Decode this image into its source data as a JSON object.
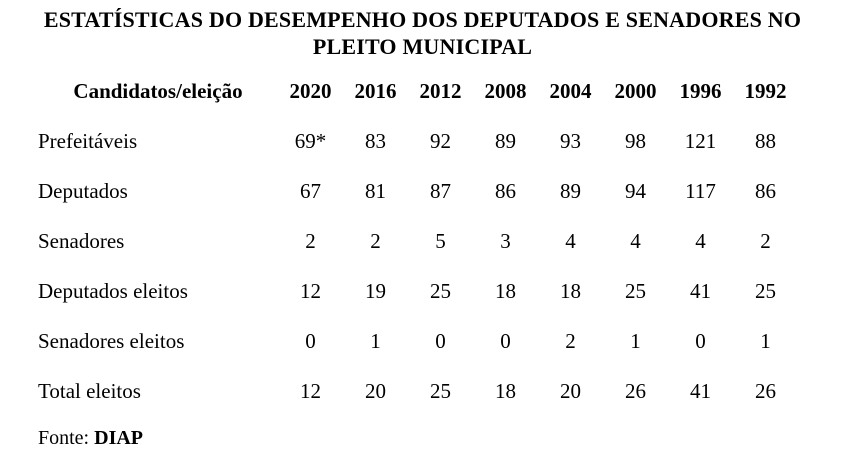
{
  "title": {
    "line1": "ESTATÍSTICAS DO DESEMPENHO DOS DEPUTADOS E SENADORES NO",
    "line2": "PLEITO MUNICIPAL"
  },
  "table": {
    "header": {
      "label_column": "Candidatos/eleição",
      "year_columns": [
        "2020",
        "2016",
        "2012",
        "2008",
        "2004",
        "2000",
        "1996",
        "1992"
      ]
    },
    "rows": [
      {
        "label": "Prefeitáveis",
        "values": [
          "69*",
          "83",
          "92",
          "89",
          "93",
          "98",
          "121",
          "88"
        ]
      },
      {
        "label": "Deputados",
        "values": [
          "67",
          "81",
          "87",
          "86",
          "89",
          "94",
          "117",
          "86"
        ]
      },
      {
        "label": "Senadores",
        "values": [
          "2",
          "2",
          "5",
          "3",
          "4",
          "4",
          "4",
          "2"
        ]
      },
      {
        "label": "Deputados eleitos",
        "values": [
          "12",
          "19",
          "25",
          "18",
          "18",
          "25",
          "41",
          "25"
        ]
      },
      {
        "label": "Senadores eleitos",
        "values": [
          "0",
          "1",
          "0",
          "0",
          "2",
          "1",
          "0",
          "1"
        ]
      },
      {
        "label": "Total eleitos",
        "values": [
          "12",
          "20",
          "25",
          "18",
          "20",
          "26",
          "41",
          "26"
        ]
      }
    ]
  },
  "footer": {
    "source_label": "Fonte:",
    "source_value": "DIAP"
  },
  "colors": {
    "background": "#ffffff",
    "text": "#000000"
  },
  "chart_data": {
    "type": "table",
    "title": "ESTATÍSTICAS DO DESEMPENHO DOS DEPUTADOS E SENADORES NO PLEITO MUNICIPAL",
    "categories": [
      "2020",
      "2016",
      "2012",
      "2008",
      "2004",
      "2000",
      "1996",
      "1992"
    ],
    "series": [
      {
        "name": "Prefeitáveis",
        "values": [
          "69*",
          83,
          92,
          89,
          93,
          98,
          121,
          88
        ]
      },
      {
        "name": "Deputados",
        "values": [
          67,
          81,
          87,
          86,
          89,
          94,
          117,
          86
        ]
      },
      {
        "name": "Senadores",
        "values": [
          2,
          2,
          5,
          3,
          4,
          4,
          4,
          2
        ]
      },
      {
        "name": "Deputados eleitos",
        "values": [
          12,
          19,
          25,
          18,
          18,
          25,
          41,
          25
        ]
      },
      {
        "name": "Senadores eleitos",
        "values": [
          0,
          1,
          0,
          0,
          2,
          1,
          0,
          1
        ]
      },
      {
        "name": "Total eleitos",
        "values": [
          12,
          20,
          25,
          18,
          20,
          26,
          41,
          26
        ]
      }
    ],
    "source": "Fonte: DIAP"
  }
}
